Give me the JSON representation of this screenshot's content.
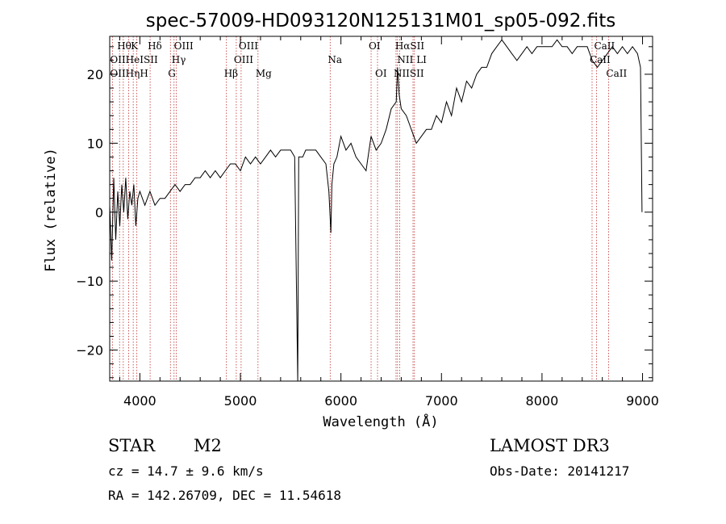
{
  "chart_data": {
    "type": "line",
    "title": "spec-57009-HD093120N125131M01_sp05-092.fits",
    "xlabel": "Wavelength (Å)",
    "ylabel": "Flux (relative)",
    "xlim": [
      3700,
      9100
    ],
    "ylim": [
      -24.5,
      25.5
    ],
    "xticks": [
      4000,
      5000,
      6000,
      7000,
      8000,
      9000
    ],
    "yticks": [
      -20,
      -10,
      0,
      10,
      20
    ],
    "grid": false,
    "series": [
      {
        "x": [
          3700,
          3720,
          3740,
          3760,
          3780,
          3800,
          3820,
          3840,
          3860,
          3880,
          3900,
          3920,
          3940,
          3960,
          3980,
          4000,
          4050,
          4100,
          4150,
          4200,
          4250,
          4300,
          4350,
          4400,
          4450,
          4500,
          4550,
          4600,
          4650,
          4700,
          4750,
          4800,
          4850,
          4900,
          4950,
          5000,
          5050,
          5100,
          5150,
          5200,
          5250,
          5300,
          5350,
          5400,
          5450,
          5500,
          5540,
          5570,
          5580,
          5590,
          5620,
          5650,
          5700,
          5750,
          5800,
          5850,
          5880,
          5900,
          5910,
          5930,
          5960,
          6000,
          6050,
          6100,
          6150,
          6200,
          6250,
          6300,
          6350,
          6400,
          6450,
          6500,
          6550,
          6563,
          6580,
          6600,
          6650,
          6700,
          6750,
          6800,
          6850,
          6900,
          6950,
          7000,
          7050,
          7100,
          7150,
          7200,
          7250,
          7300,
          7350,
          7400,
          7450,
          7500,
          7550,
          7600,
          7650,
          7700,
          7750,
          7800,
          7850,
          7900,
          7950,
          8000,
          8050,
          8100,
          8150,
          8200,
          8250,
          8300,
          8350,
          8400,
          8450,
          8500,
          8550,
          8600,
          8650,
          8700,
          8750,
          8800,
          8850,
          8900,
          8950,
          8980,
          8995
        ],
        "y": [
          1,
          -7,
          5,
          -4,
          3,
          -2,
          4,
          0,
          5,
          -1,
          3,
          1,
          4,
          -2,
          2,
          3,
          1,
          3,
          1,
          2,
          2,
          3,
          4,
          3,
          4,
          4,
          5,
          5,
          6,
          5,
          6,
          5,
          6,
          7,
          7,
          6,
          8,
          7,
          8,
          7,
          8,
          9,
          8,
          9,
          9,
          9,
          8,
          -25,
          8,
          8,
          8,
          9,
          9,
          9,
          8,
          7,
          3,
          -3,
          4,
          7,
          8,
          11,
          9,
          10,
          8,
          7,
          6,
          11,
          9,
          10,
          12,
          15,
          16,
          21,
          17,
          15,
          14,
          12,
          10,
          11,
          12,
          12,
          14,
          13,
          16,
          14,
          18,
          16,
          19,
          18,
          20,
          21,
          21,
          23,
          24,
          25,
          24,
          23,
          22,
          23,
          24,
          23,
          24,
          24,
          24,
          24,
          25,
          24,
          24,
          23,
          24,
          24,
          24,
          22,
          21,
          22,
          23,
          24,
          23,
          24,
          23,
          24,
          23,
          21,
          0
        ]
      }
    ],
    "annotations": [
      {
        "label": "Hθ",
        "x": 3798,
        "row": 0
      },
      {
        "label": "K",
        "x": 3934,
        "row": 0
      },
      {
        "label": "Hδ",
        "x": 4102,
        "row": 0
      },
      {
        "label": "OIII",
        "x": 4363,
        "row": 0
      },
      {
        "label": "OIII",
        "x": 5007,
        "row": 0
      },
      {
        "label": "OI",
        "x": 6300,
        "row": 0
      },
      {
        "label": "HαSII",
        "x": 6563,
        "row": 0
      },
      {
        "label": "CaII",
        "x": 8542,
        "row": 0
      },
      {
        "label": "OIIHeISII",
        "x": 3727,
        "row": 1
      },
      {
        "label": "Hγ",
        "x": 4340,
        "row": 1
      },
      {
        "label": "OIII",
        "x": 4959,
        "row": 1
      },
      {
        "label": "Na",
        "x": 5893,
        "row": 1
      },
      {
        "label": "NII LI",
        "x": 6584,
        "row": 1
      },
      {
        "label": "CaII",
        "x": 8498,
        "row": 1
      },
      {
        "label": "OIIHηH",
        "x": 3727,
        "row": 2
      },
      {
        "label": "G",
        "x": 4304,
        "row": 2
      },
      {
        "label": "Hβ",
        "x": 4861,
        "row": 2
      },
      {
        "label": "Mg",
        "x": 5175,
        "row": 2
      },
      {
        "label": "OI",
        "x": 6364,
        "row": 2
      },
      {
        "label": "NIISII",
        "x": 6548,
        "row": 2
      },
      {
        "label": "CaII",
        "x": 8662,
        "row": 2
      }
    ],
    "line_markers": [
      3727,
      3798,
      3835,
      3889,
      3934,
      3970,
      4102,
      4304,
      4340,
      4363,
      4861,
      4959,
      5007,
      5175,
      5893,
      6300,
      6364,
      6548,
      6563,
      6584,
      6717,
      6731,
      8498,
      8542,
      8662
    ]
  },
  "info": {
    "object_type": "STAR",
    "subclass": "M2",
    "survey": "LAMOST DR3",
    "cz": "cz = 14.7 ± 9.6 km/s",
    "obs_date": "Obs-Date: 20141217",
    "coords": "RA = 142.26709, DEC =  11.54618"
  }
}
